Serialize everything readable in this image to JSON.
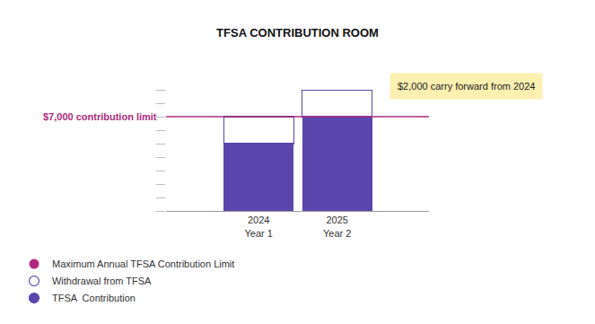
{
  "chart_data": {
    "type": "bar",
    "title": "TFSA CONTRIBUTION ROOM",
    "categories": [
      "2024\nYear 1",
      "2025\nYear 2"
    ],
    "series": [
      {
        "name": "TFSA  Contribution",
        "color": "#5a46ad",
        "marker": "filled",
        "values": [
          5000,
          7000
        ]
      },
      {
        "name": "Withdrawal from TFSA",
        "color": "#5a46ad",
        "marker": "outline",
        "values": [
          2000,
          2000
        ]
      }
    ],
    "stacked": true,
    "ylim": [
      0,
      9000
    ],
    "yticks": [
      0,
      1000,
      2000,
      3000,
      4000,
      5000,
      6000,
      7000,
      8000,
      9000
    ],
    "tick_labels": "x",
    "grid": false,
    "legend": "bottom-left",
    "reference_line": {
      "name": "Maximum Annual TFSA Contribution Limit",
      "label": "$7,000 contribution limit",
      "value": 7000,
      "color": "#b0287e"
    },
    "annotations": [
      "$2,000 carry forward from 2024"
    ]
  }
}
